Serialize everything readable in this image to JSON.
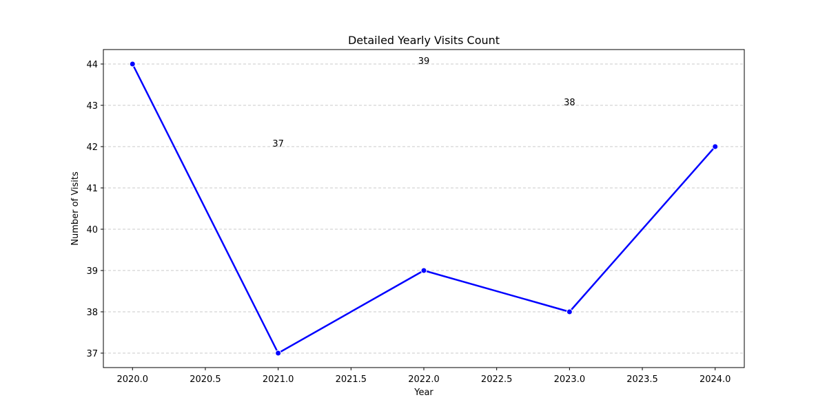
{
  "chart_data": {
    "type": "line",
    "title": "Detailed Yearly Visits Count",
    "xlabel": "Year",
    "ylabel": "Number of Visits",
    "xlim": [
      2019.8,
      2024.2
    ],
    "ylim": [
      36.65,
      44.35
    ],
    "x_ticks": [
      2020.0,
      2020.5,
      2021.0,
      2021.5,
      2022.0,
      2022.5,
      2023.0,
      2023.5,
      2024.0
    ],
    "x_tick_labels": [
      "2020.0",
      "2020.5",
      "2021.0",
      "2021.5",
      "2022.0",
      "2022.5",
      "2023.0",
      "2023.5",
      "2024.0"
    ],
    "y_ticks": [
      37,
      38,
      39,
      40,
      41,
      42,
      43,
      44
    ],
    "y_tick_labels": [
      "37",
      "38",
      "39",
      "40",
      "41",
      "42",
      "43",
      "44"
    ],
    "grid": "horizontal dashed",
    "series": [
      {
        "x": [
          2020,
          2021,
          2022,
          2023,
          2024
        ],
        "y": [
          44,
          37,
          39,
          38,
          42
        ],
        "color": "#0000ff",
        "marker": "circle"
      }
    ],
    "annotations": [
      {
        "x": 2021,
        "y": 42,
        "text": "37"
      },
      {
        "x": 2022,
        "y": 44,
        "text": "39"
      },
      {
        "x": 2023,
        "y": 43,
        "text": "38"
      }
    ]
  }
}
